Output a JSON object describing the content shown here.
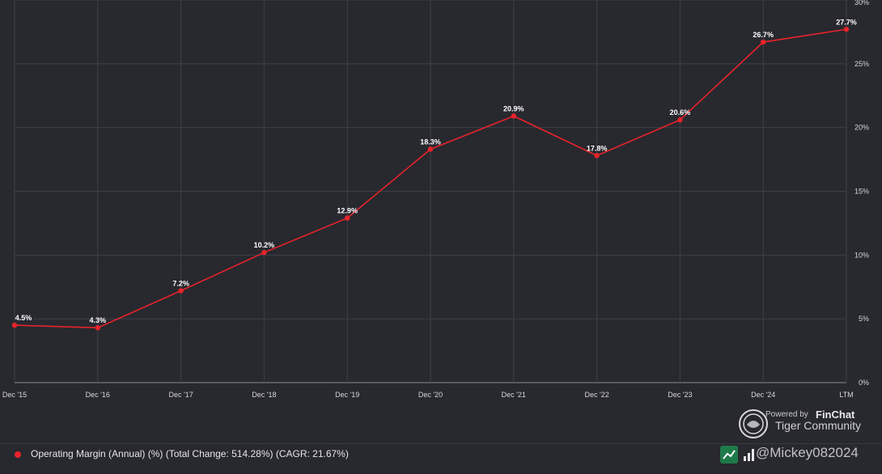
{
  "chart_data": {
    "type": "line",
    "categories": [
      "Dec '15",
      "Dec '16",
      "Dec '17",
      "Dec '18",
      "Dec '19",
      "Dec '20",
      "Dec '21",
      "Dec '22",
      "Dec '23",
      "Dec '24",
      "LTM"
    ],
    "series": [
      {
        "name": "Operating Margin (Annual) (%) (Total Change: 514.28%) (CAGR: 21.67%)",
        "values": [
          4.5,
          4.3,
          7.2,
          10.2,
          12.9,
          18.3,
          20.9,
          17.8,
          20.6,
          26.7,
          27.7
        ],
        "data_labels": [
          "4.5%",
          "4.3%",
          "7.2%",
          "10.2%",
          "12.9%",
          "18.3%",
          "20.9%",
          "17.8%",
          "20.6%",
          "26.7%",
          "27.7%"
        ],
        "color": "#e8232a"
      }
    ],
    "y_ticks": [
      0,
      5,
      10,
      15,
      20,
      25,
      30
    ],
    "y_tick_labels": [
      "0%",
      "5%",
      "10%",
      "15%",
      "20%",
      "25%",
      "30%"
    ],
    "ylim": [
      0,
      30
    ],
    "grid": true,
    "legend_position": "bottom-left",
    "title": "",
    "xlabel": "",
    "ylabel": ""
  },
  "watermark": {
    "powered_by": "Powered by",
    "brand": "FinChat",
    "community": "Tiger Community",
    "logo_icon": "tiger-coin-icon"
  },
  "legend": {
    "label": "Operating Margin (Annual) (%) (Total Change: 514.28%) (CAGR: 21.67%)",
    "handle": "@Mickey082024"
  },
  "colors": {
    "background": "#28282f",
    "grid": "#3f3f47",
    "series": "#e8232a",
    "text": "#d6d6dc"
  }
}
